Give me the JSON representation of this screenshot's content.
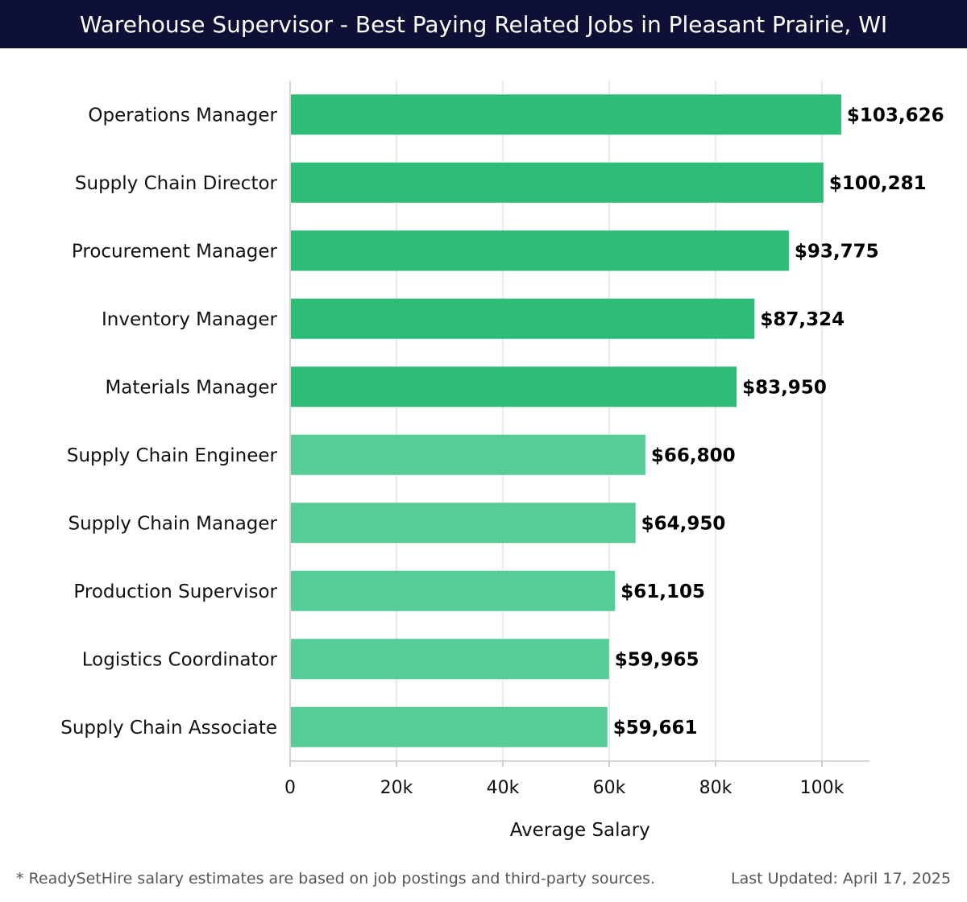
{
  "chart_data": {
    "type": "bar",
    "orientation": "horizontal",
    "title": "Warehouse Supervisor - Best Paying Related Jobs in Pleasant Prairie, WI",
    "xlabel": "Average Salary",
    "ylabel": "",
    "xlim": [
      0,
      109000
    ],
    "xticks": [
      0,
      20000,
      40000,
      60000,
      80000,
      100000
    ],
    "xtick_labels": [
      "0",
      "20k",
      "40k",
      "60k",
      "80k",
      "100k"
    ],
    "grid": true,
    "categories": [
      "Operations Manager",
      "Supply Chain Director",
      "Procurement Manager",
      "Inventory Manager",
      "Materials Manager",
      "Supply Chain Engineer",
      "Supply Chain Manager",
      "Production Supervisor",
      "Logistics Coordinator",
      "Supply Chain Associate"
    ],
    "values": [
      103626,
      100281,
      93775,
      87324,
      83950,
      66800,
      64950,
      61105,
      59965,
      59661
    ],
    "value_labels": [
      "$103,626",
      "$100,281",
      "$93,775",
      "$87,324",
      "$83,950",
      "$66,800",
      "$64,950",
      "$61,105",
      "$59,965",
      "$59,661"
    ],
    "colors": {
      "top_bars": "#2ebd78",
      "other_bars": "#56cc96",
      "grid": "#e4e4e4"
    },
    "highlight_count": 5
  },
  "footer": {
    "note": "* ReadySetHire salary estimates are based on job postings and third-party sources.",
    "updated": "Last Updated: April 17, 2025"
  }
}
